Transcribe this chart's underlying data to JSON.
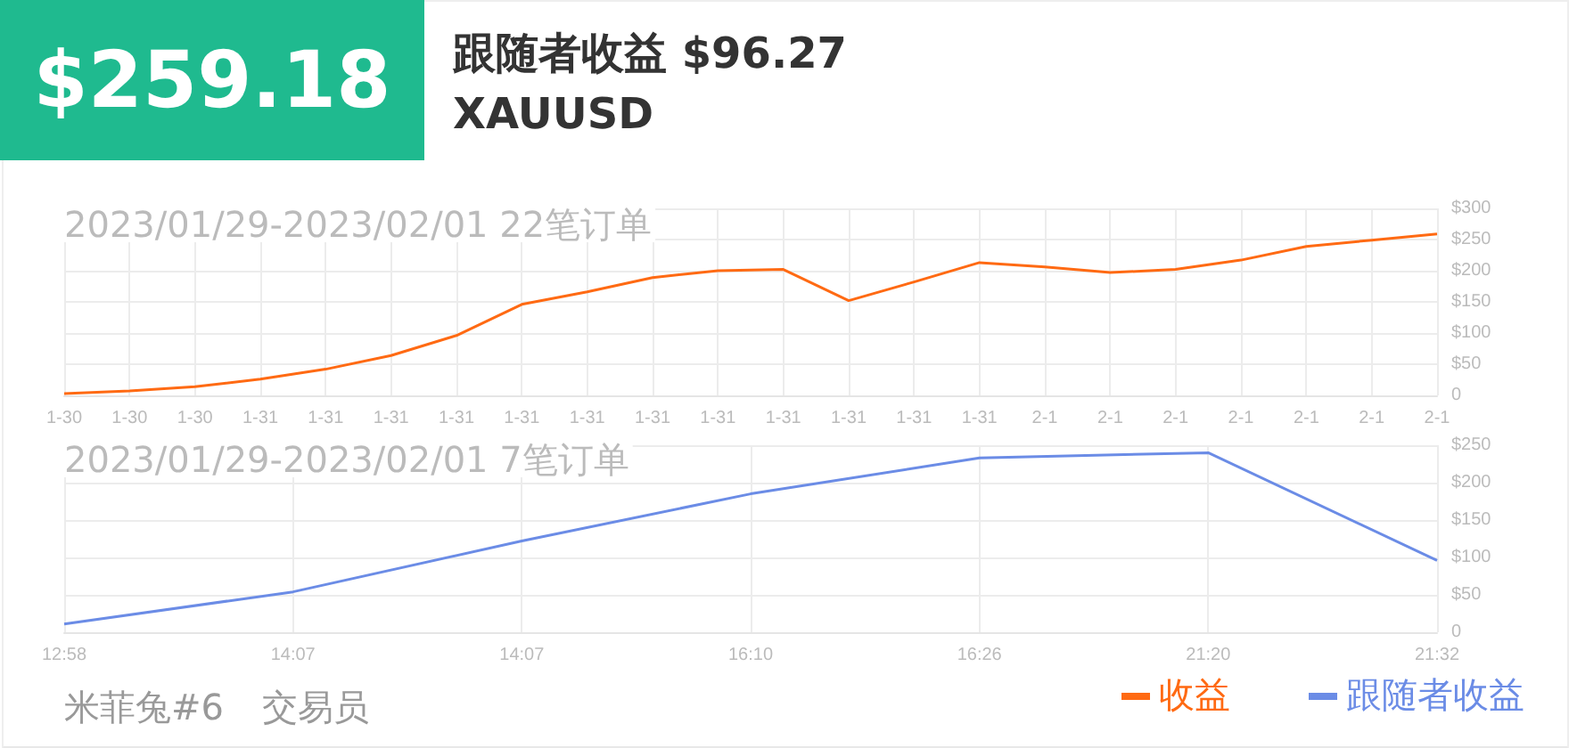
{
  "chart_data": [
    {
      "type": "line",
      "title": "2023/01/29-2023/02/01 22笔订单",
      "annotations": [
        "$259.18",
        "跟随者收益 $96.27",
        "XAUUSD",
        "米菲兔#6",
        "交易员"
      ],
      "categories": [
        "1-30",
        "1-30",
        "1-30",
        "1-31",
        "1-31",
        "1-31",
        "1-31",
        "1-31",
        "1-31",
        "1-31",
        "1-31",
        "1-31",
        "1-31",
        "1-31",
        "1-31",
        "2-1",
        "2-1",
        "2-1",
        "2-1",
        "2-1",
        "2-1",
        "2-1"
      ],
      "series": [
        {
          "name": "收益",
          "color": "#ff6a13",
          "values": [
            3,
            7,
            14,
            26,
            42,
            64,
            96,
            146,
            166,
            189,
            200,
            202,
            152,
            182,
            213,
            206,
            197,
            202,
            217,
            239,
            249,
            259
          ]
        }
      ],
      "ylim": [
        0,
        300
      ],
      "yticks": [
        0,
        {
          "value": 50,
          "label": "$50"
        },
        {
          "value": 100,
          "label": "$100"
        },
        {
          "value": 150,
          "label": "$150"
        },
        {
          "value": 200,
          "label": "$200"
        },
        {
          "value": 250,
          "label": "$250"
        },
        {
          "value": 300,
          "label": "$300"
        }
      ],
      "grid": true,
      "legend": "bottom right",
      "marker": "none"
    },
    {
      "type": "line",
      "title": "2023/01/29-2023/02/01 7笔订单",
      "categories": [
        "12:58",
        "14:07",
        "14:07",
        "16:10",
        "16:26",
        "21:20",
        "21:32"
      ],
      "series": [
        {
          "name": "跟随者收益",
          "color": "#6b8ce6",
          "values": [
            11,
            54,
            122,
            185,
            233,
            240,
            96
          ]
        }
      ],
      "ylim": [
        0,
        250
      ],
      "yticks": [
        0,
        {
          "value": 50,
          "label": "$50"
        },
        {
          "value": 100,
          "label": "$100"
        },
        {
          "value": 150,
          "label": "$150"
        },
        {
          "value": 200,
          "label": "$200"
        },
        {
          "value": 250,
          "label": "$250"
        }
      ],
      "grid": true,
      "legend": "bottom right",
      "marker": "none"
    }
  ]
}
